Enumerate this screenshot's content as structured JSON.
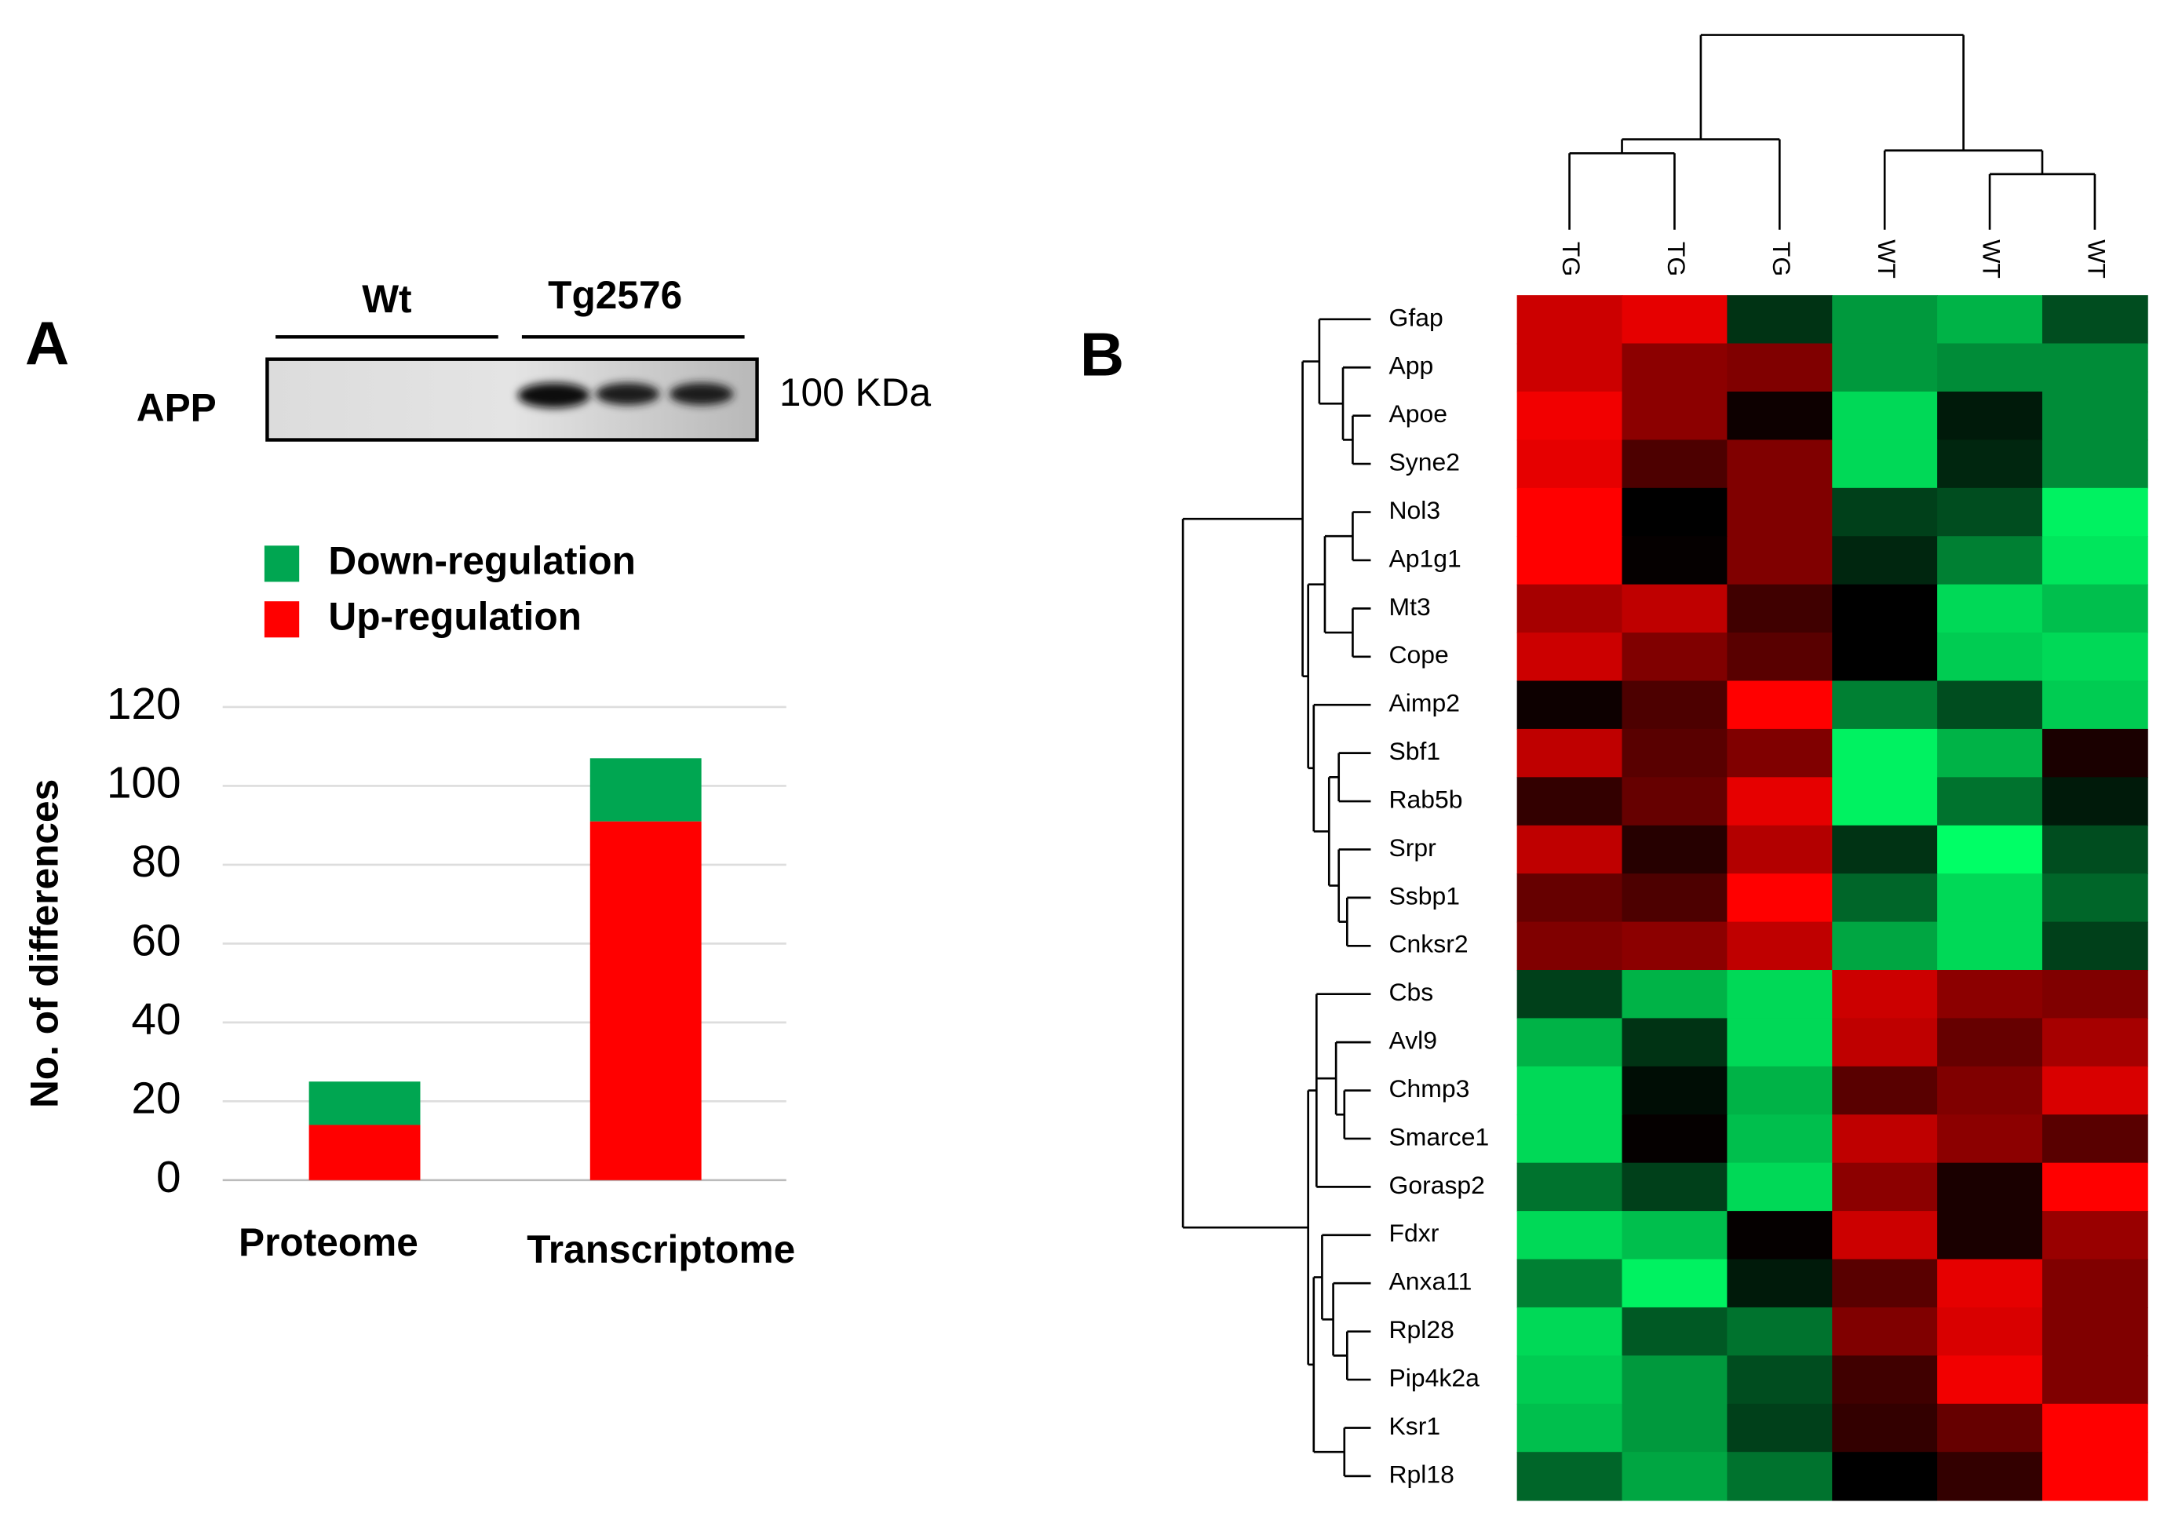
{
  "panels": [
    "A",
    "B"
  ],
  "blot": {
    "groups": [
      "Wt",
      "Tg2576"
    ],
    "protein": "APP",
    "size": "100 KDa"
  },
  "chart_data": [
    {
      "type": "bar",
      "stacked": true,
      "ylabel": "No. of differences",
      "categories": [
        "Proteome",
        "Transcriptome"
      ],
      "series": [
        {
          "name": "Up-regulation",
          "color": "#ff0000",
          "values": [
            14,
            91
          ]
        },
        {
          "name": "Down-regulation",
          "color": "#00a651",
          "values": [
            11,
            16
          ]
        }
      ],
      "ylim": [
        0,
        120
      ],
      "yticks": [
        0,
        20,
        40,
        60,
        80,
        100,
        120
      ],
      "grid": true,
      "legend": "top-left"
    },
    {
      "type": "heatmap",
      "columns": [
        "TG",
        "TG",
        "TG",
        "WT",
        "WT",
        "WT"
      ],
      "rows": [
        "Gfap",
        "App",
        "Apoe",
        "Syne2",
        "Nol3",
        "Ap1g1",
        "Mt3",
        "Cope",
        "Aimp2",
        "Sbf1",
        "Rab5b",
        "Srpr",
        "Ssbp1",
        "Cnksr2",
        "Cbs",
        "Avl9",
        "Chmp3",
        "Smarce1",
        "Gorasp2",
        "Fdxr",
        "Anxa11",
        "Rpl28",
        "Pip4k2a",
        "Ksr1",
        "Rpl18"
      ],
      "colormap": [
        "#00ff66",
        "#000000",
        "#ff0000"
      ],
      "values": [
        [
          0.8,
          0.9,
          -0.2,
          -0.6,
          -0.7,
          -0.3
        ],
        [
          0.8,
          0.55,
          0.5,
          -0.6,
          -0.55,
          -0.55
        ],
        [
          0.95,
          0.55,
          0.05,
          -0.85,
          -0.1,
          -0.55
        ],
        [
          0.9,
          0.3,
          0.5,
          -0.85,
          -0.15,
          -0.55
        ],
        [
          1,
          0,
          0.5,
          -0.25,
          -0.3,
          -0.95
        ],
        [
          1,
          0.02,
          0.5,
          -0.15,
          -0.5,
          -0.9
        ],
        [
          0.65,
          0.75,
          0.25,
          0,
          -0.85,
          -0.75
        ],
        [
          0.8,
          0.5,
          0.35,
          0,
          -0.8,
          -0.85
        ],
        [
          0.05,
          0.3,
          1,
          -0.5,
          -0.3,
          -0.8
        ],
        [
          0.75,
          0.35,
          0.5,
          -0.95,
          -0.7,
          0.1
        ],
        [
          0.2,
          0.4,
          0.9,
          -0.95,
          -0.45,
          -0.1
        ],
        [
          0.75,
          0.15,
          0.7,
          -0.2,
          -1,
          -0.3
        ],
        [
          0.4,
          0.3,
          1,
          -0.4,
          -0.85,
          -0.4
        ],
        [
          0.5,
          0.55,
          0.75,
          -0.65,
          -0.85,
          -0.25
        ],
        [
          -0.25,
          -0.7,
          -0.85,
          0.8,
          0.55,
          0.5
        ],
        [
          -0.7,
          -0.2,
          -0.85,
          0.75,
          0.4,
          0.65
        ],
        [
          -0.85,
          -0.05,
          -0.7,
          0.35,
          0.5,
          0.85
        ],
        [
          -0.85,
          0.02,
          -0.75,
          0.75,
          0.55,
          0.35
        ],
        [
          -0.45,
          -0.25,
          -0.85,
          0.55,
          0.1,
          1
        ],
        [
          -0.85,
          -0.75,
          0.02,
          0.8,
          0.1,
          0.6
        ],
        [
          -0.5,
          -0.95,
          -0.1,
          0.35,
          0.9,
          0.5
        ],
        [
          -0.85,
          -0.35,
          -0.45,
          0.5,
          0.85,
          0.5
        ],
        [
          -0.8,
          -0.6,
          -0.3,
          0.25,
          0.95,
          0.5
        ],
        [
          -0.75,
          -0.6,
          -0.25,
          0.2,
          0.4,
          1
        ],
        [
          -0.4,
          -0.65,
          -0.45,
          0,
          0.2,
          1
        ]
      ]
    }
  ]
}
